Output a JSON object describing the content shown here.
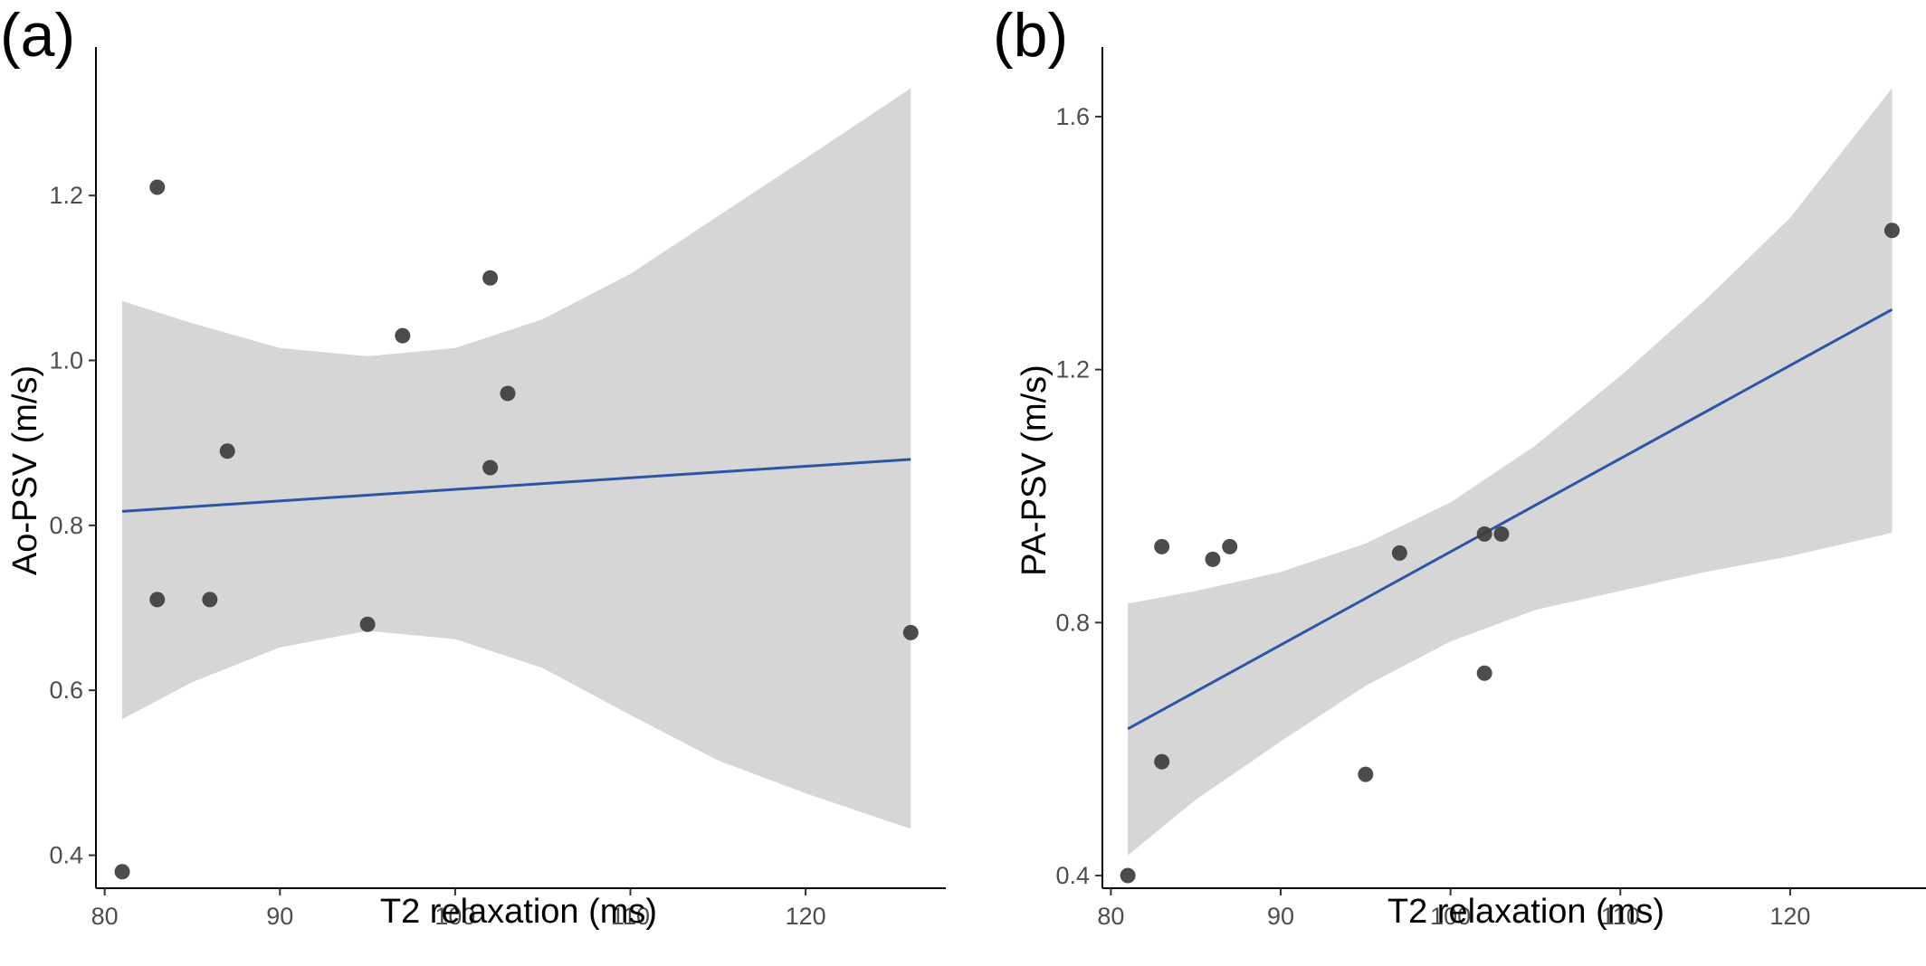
{
  "chart_data": [
    {
      "type": "scatter",
      "panel_label": "(a)",
      "xlabel": "T2 relaxation (ms)",
      "ylabel": "Ao-PSV (m/s)",
      "xlim": [
        79.5,
        128
      ],
      "ylim": [
        0.36,
        1.38
      ],
      "xticks": [
        "80",
        "90",
        "100",
        "110",
        "120"
      ],
      "yticks": [
        "0.4",
        "0.6",
        "0.8",
        "1.0",
        "1.2"
      ],
      "points": [
        {
          "x": 81,
          "y": 0.38
        },
        {
          "x": 83,
          "y": 1.21
        },
        {
          "x": 83,
          "y": 0.71
        },
        {
          "x": 86,
          "y": 0.71
        },
        {
          "x": 87,
          "y": 0.89
        },
        {
          "x": 95,
          "y": 0.68
        },
        {
          "x": 97,
          "y": 1.03
        },
        {
          "x": 102,
          "y": 1.1
        },
        {
          "x": 102,
          "y": 0.87
        },
        {
          "x": 103,
          "y": 0.96
        },
        {
          "x": 126,
          "y": 0.67
        }
      ],
      "fit_line": {
        "x": [
          81,
          126
        ],
        "y": [
          0.817,
          0.88
        ],
        "color": "#2c55a8"
      },
      "confidence_band": {
        "color": "#d6d6d6",
        "x": [
          81,
          85,
          90,
          95,
          100,
          105,
          110,
          115,
          120,
          126
        ],
        "upper": [
          1.072,
          1.045,
          1.015,
          1.005,
          1.015,
          1.05,
          1.105,
          1.175,
          1.245,
          1.33
        ],
        "lower": [
          0.565,
          0.61,
          0.652,
          0.672,
          0.662,
          0.627,
          0.57,
          0.515,
          0.475,
          0.432
        ]
      },
      "point_color": "#3d3d3d"
    },
    {
      "type": "scatter",
      "panel_label": "(b)",
      "xlabel": "T2 relaxation (ms)",
      "ylabel": "PA-PSV (m/s)",
      "xlim": [
        79.5,
        128
      ],
      "ylim": [
        0.38,
        1.71
      ],
      "xticks": [
        "80",
        "90",
        "100",
        "110",
        "120"
      ],
      "yticks": [
        "0.4",
        "0.8",
        "1.2",
        "1.6"
      ],
      "points": [
        {
          "x": 81,
          "y": 0.4
        },
        {
          "x": 83,
          "y": 0.92
        },
        {
          "x": 83,
          "y": 0.58
        },
        {
          "x": 86,
          "y": 0.9
        },
        {
          "x": 87,
          "y": 0.92
        },
        {
          "x": 95,
          "y": 0.56
        },
        {
          "x": 97,
          "y": 0.91
        },
        {
          "x": 102,
          "y": 0.94
        },
        {
          "x": 102,
          "y": 0.72
        },
        {
          "x": 103,
          "y": 0.94
        },
        {
          "x": 126,
          "y": 1.42
        }
      ],
      "fit_line": {
        "x": [
          81,
          126
        ],
        "y": [
          0.632,
          1.295
        ],
        "color": "#2c55a8"
      },
      "confidence_band": {
        "color": "#d6d6d6",
        "x": [
          81,
          85,
          90,
          95,
          100,
          105,
          110,
          115,
          120,
          126
        ],
        "upper": [
          0.83,
          0.85,
          0.88,
          0.925,
          0.99,
          1.08,
          1.19,
          1.31,
          1.44,
          1.645
        ],
        "lower": [
          0.432,
          0.52,
          0.612,
          0.7,
          0.77,
          0.82,
          0.85,
          0.88,
          0.905,
          0.942
        ]
      },
      "point_color": "#3d3d3d"
    }
  ]
}
